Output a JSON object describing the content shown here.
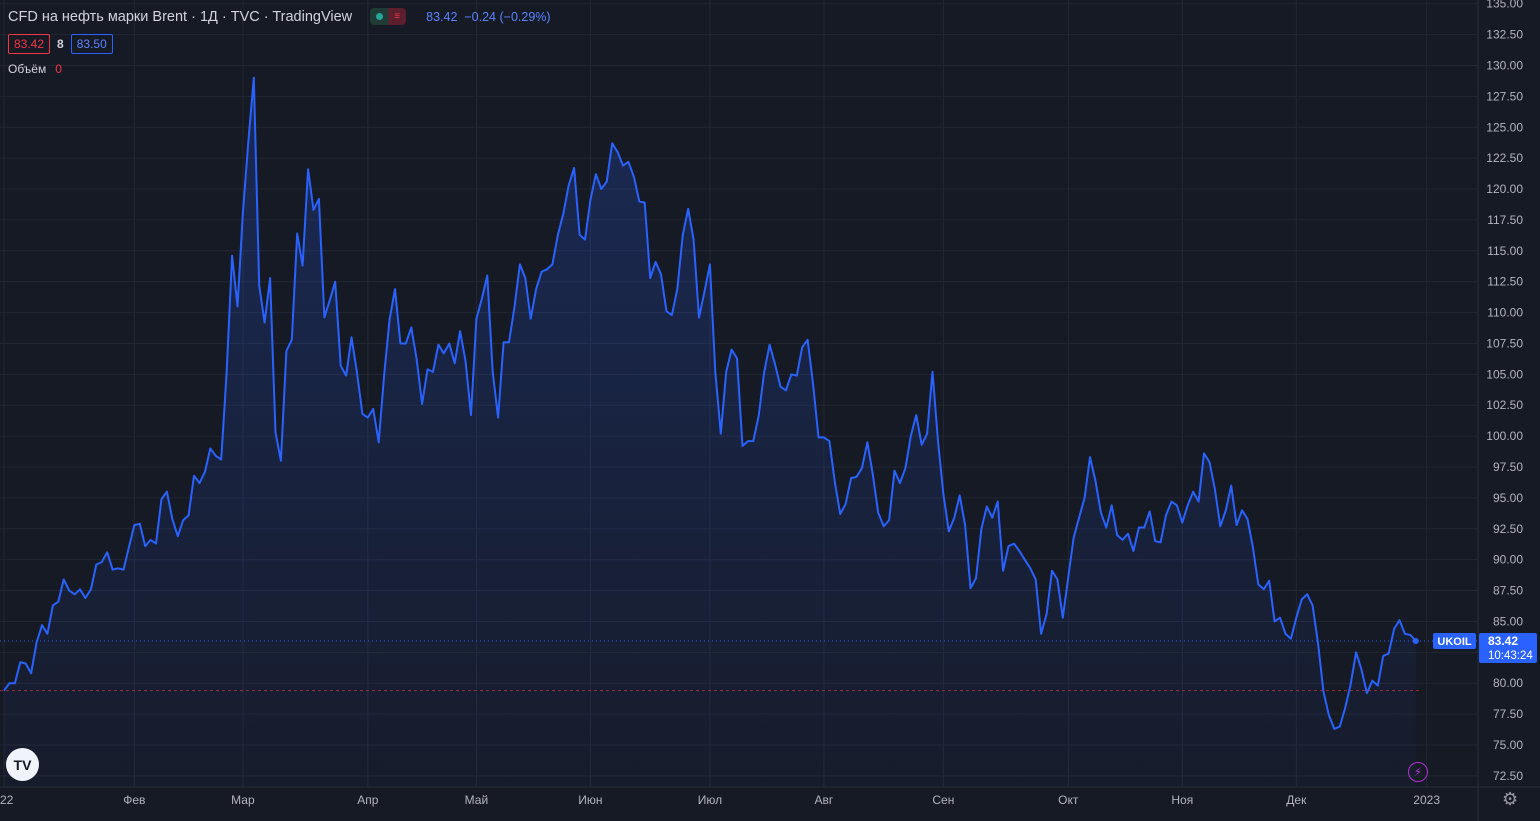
{
  "header": {
    "title": "CFD на нефть марки Brent · 1Д · TVC · TradingView",
    "quote_last": "83.42",
    "quote_change": "−0.24 (−0.29%)",
    "status_pill_right": "≡"
  },
  "bid_ask": {
    "bid": "83.42",
    "spread": "8",
    "ask": "83.50"
  },
  "volume": {
    "label": "Объём",
    "value": "0"
  },
  "badge": {
    "symbol": "UKOIL",
    "price": "83.42",
    "countdown": "10:43:24"
  },
  "logo": {
    "text": "TV"
  },
  "icons": {
    "bolt": "lightning-icon",
    "gear": "settings-gear-icon"
  },
  "colors": {
    "line": "#2962ff",
    "background": "#161a25",
    "bid": "#f23645",
    "ask": "#2962ff",
    "grid": "#232734"
  },
  "chart_data": {
    "type": "area",
    "x_tick_labels": [
      "22",
      "Фев",
      "Мар",
      "Апр",
      "Май",
      "Июн",
      "Июл",
      "Авг",
      "Сен",
      "Окт",
      "Ноя",
      "Дек",
      "2023"
    ],
    "x_tick_trading_day": [
      0,
      24,
      44,
      67,
      87,
      108,
      130,
      151,
      173,
      196,
      217,
      238,
      262
    ],
    "y_ticks": [
      "72.50",
      "75.00",
      "77.50",
      "80.00",
      "82.50",
      "85.00",
      "87.50",
      "90.00",
      "92.50",
      "95.00",
      "97.50",
      "100.00",
      "102.50",
      "105.00",
      "107.50",
      "110.00",
      "112.50",
      "115.00",
      "117.50",
      "120.00",
      "122.50",
      "125.00",
      "127.50",
      "130.00",
      "132.50",
      "135.00"
    ],
    "ylim": [
      71.6,
      135.3
    ],
    "grid": true,
    "last_price_line": 83.42,
    "dashed_line": 79.4,
    "values": [
      79.4,
      80.0,
      80.0,
      81.7,
      81.6,
      80.8,
      83.3,
      84.7,
      84.0,
      86.3,
      86.6,
      88.4,
      87.5,
      87.2,
      87.6,
      86.9,
      87.6,
      89.6,
      89.8,
      90.6,
      89.2,
      89.3,
      89.2,
      91.0,
      92.8,
      92.9,
      91.1,
      91.6,
      91.3,
      94.9,
      95.5,
      93.3,
      91.9,
      93.2,
      93.6,
      96.8,
      96.2,
      97.1,
      99.0,
      98.4,
      98.1,
      105.1,
      114.6,
      110.5,
      118.1,
      123.8,
      129.0,
      112.2,
      109.2,
      112.8,
      100.3,
      98.0,
      106.9,
      107.8,
      116.4,
      113.8,
      121.6,
      118.3,
      119.2,
      109.6,
      111.0,
      112.5,
      105.7,
      104.9,
      108.0,
      105.2,
      101.8,
      101.5,
      102.2,
      99.5,
      104.9,
      109.4,
      111.9,
      107.5,
      107.5,
      108.8,
      106.2,
      102.6,
      105.4,
      105.2,
      107.4,
      106.7,
      107.5,
      105.9,
      108.5,
      106.1,
      101.7,
      109.5,
      111.1,
      113.0,
      105.2,
      101.5,
      107.6,
      107.6,
      110.4,
      113.9,
      112.8,
      109.5,
      111.9,
      113.3,
      113.5,
      113.9,
      116.3,
      118.0,
      120.3,
      121.7,
      116.3,
      115.9,
      119.1,
      121.2,
      120.0,
      120.6,
      123.7,
      123.0,
      121.9,
      122.2,
      121.0,
      119.0,
      118.9,
      112.8,
      114.1,
      113.1,
      110.1,
      109.8,
      111.9,
      116.3,
      118.4,
      115.9,
      109.6,
      111.7,
      113.9,
      105.2,
      100.2,
      105.2,
      107.0,
      106.3,
      99.2,
      99.6,
      99.6,
      101.7,
      105.2,
      107.4,
      105.8,
      104.0,
      103.7,
      105.0,
      104.9,
      107.2,
      107.8,
      104.2,
      99.9,
      99.9,
      99.6,
      96.3,
      93.7,
      94.5,
      96.6,
      96.7,
      97.4,
      99.5,
      96.9,
      93.8,
      92.7,
      93.2,
      97.2,
      96.2,
      97.4,
      100.0,
      101.7,
      99.3,
      100.2,
      105.2,
      99.6,
      95.3,
      92.3,
      93.4,
      95.2,
      92.8,
      87.7,
      88.5,
      92.5,
      94.3,
      93.4,
      94.7,
      89.1,
      91.1,
      91.3,
      90.7,
      90.0,
      89.3,
      88.4,
      84.0,
      85.6,
      89.1,
      88.4,
      85.3,
      88.6,
      91.8,
      93.4,
      95.0,
      98.3,
      96.4,
      93.8,
      92.6,
      94.4,
      92.0,
      91.6,
      92.1,
      90.7,
      92.6,
      92.6,
      93.9,
      91.5,
      91.4,
      93.6,
      94.7,
      94.4,
      93.0,
      94.4,
      95.5,
      94.7,
      98.6,
      97.9,
      95.7,
      92.7,
      94.0,
      96.0,
      92.8,
      94.0,
      93.3,
      91.0,
      88.0,
      87.6,
      88.3,
      85.0,
      85.3,
      84.0,
      83.6,
      85.3,
      86.8,
      87.2,
      86.3,
      83.2,
      79.3,
      77.4,
      76.3,
      76.5,
      78.0,
      79.9,
      82.5,
      81.1,
      79.2,
      80.2,
      79.8,
      82.2,
      82.4,
      84.4,
      85.1,
      84.0,
      83.9,
      83.42
    ]
  }
}
